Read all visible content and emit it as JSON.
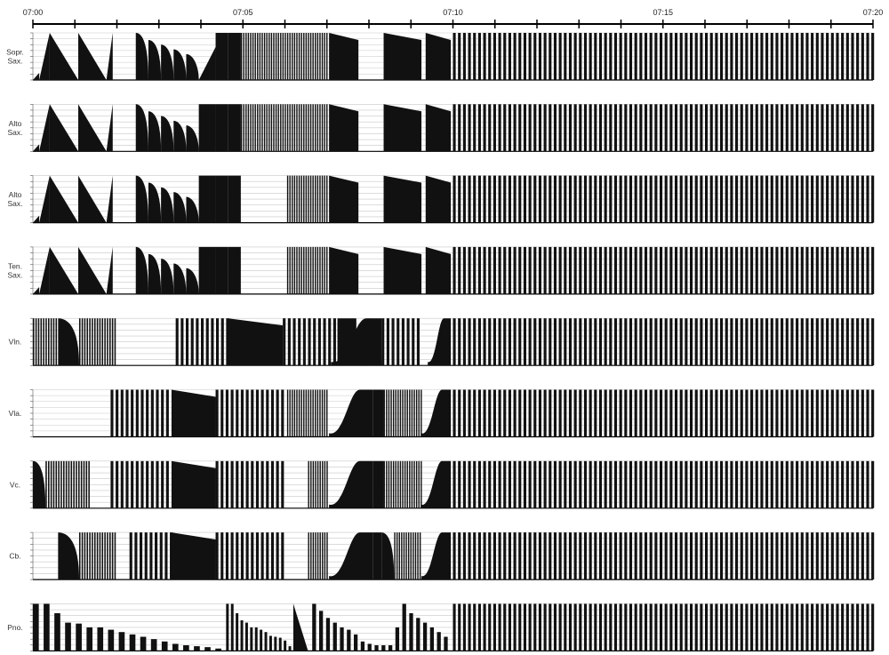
{
  "chart_data": {
    "type": "area",
    "title": "",
    "xlabel": "",
    "ylabel": "",
    "x_unit": "minutes",
    "xlim": [
      0,
      20
    ],
    "ylim": [
      0,
      1
    ],
    "grid": true,
    "time_ticks": [
      "07:00",
      "07:05",
      "07:10",
      "07:15",
      "07:20"
    ],
    "color": "#111111",
    "instruments": [
      {
        "name": "Sopr.\nSax.",
        "events": [
          {
            "shape": "ramp",
            "x0": 0.0,
            "x1": 0.15,
            "amp": 0.15
          },
          {
            "shape": "ramp",
            "x0": 0.15,
            "x1": 0.4,
            "amp": 1.0,
            "dir": "up"
          },
          {
            "shape": "ramp",
            "x0": 0.4,
            "x1": 1.08,
            "amp": 1.0,
            "dir": "down"
          },
          {
            "shape": "ramp",
            "x0": 1.08,
            "x1": 1.75,
            "amp": 1.0,
            "dir": "down"
          },
          {
            "shape": "ramp",
            "x0": 1.75,
            "x1": 1.9,
            "amp": 1.0,
            "dir": "up"
          },
          {
            "shape": "decay",
            "x0": 2.45,
            "x1": 2.75,
            "amp": 1.0
          },
          {
            "shape": "decay",
            "x0": 2.75,
            "x1": 3.05,
            "amp": 0.85
          },
          {
            "shape": "decay",
            "x0": 3.05,
            "x1": 3.35,
            "amp": 0.75
          },
          {
            "shape": "decay",
            "x0": 3.35,
            "x1": 3.65,
            "amp": 0.65
          },
          {
            "shape": "decay",
            "x0": 3.65,
            "x1": 3.95,
            "amp": 0.55
          },
          {
            "shape": "ramp",
            "x0": 3.95,
            "x1": 4.35,
            "amp": 0.7,
            "dir": "up"
          },
          {
            "shape": "block",
            "x0": 4.35,
            "x1": 4.65,
            "amp": 1.0
          },
          {
            "shape": "block",
            "x0": 4.65,
            "x1": 4.95,
            "amp": 1.0
          },
          {
            "shape": "comb",
            "x0": 4.95,
            "x1": 7.05,
            "amp": 1.0,
            "density": 0.055
          },
          {
            "shape": "block",
            "x0": 7.05,
            "x1": 7.75,
            "amp": 1.0,
            "dir": "down"
          },
          {
            "shape": "block",
            "x0": 8.35,
            "x1": 9.25,
            "amp": 1.0,
            "dir": "down"
          },
          {
            "shape": "block",
            "x0": 9.35,
            "x1": 9.95,
            "amp": 1.0,
            "dir": "down"
          },
          {
            "shape": "comb",
            "x0": 10.0,
            "x1": 20.0,
            "amp": 1.0,
            "density": 0.12
          }
        ]
      },
      {
        "name": "Alto\nSax.",
        "events": [
          {
            "shape": "ramp",
            "x0": 0.0,
            "x1": 0.15,
            "amp": 0.15
          },
          {
            "shape": "ramp",
            "x0": 0.15,
            "x1": 0.4,
            "amp": 1.0,
            "dir": "up"
          },
          {
            "shape": "ramp",
            "x0": 0.4,
            "x1": 1.08,
            "amp": 1.0,
            "dir": "down"
          },
          {
            "shape": "ramp",
            "x0": 1.08,
            "x1": 1.75,
            "amp": 1.0,
            "dir": "down"
          },
          {
            "shape": "ramp",
            "x0": 1.75,
            "x1": 1.9,
            "amp": 1.0,
            "dir": "up"
          },
          {
            "shape": "decay",
            "x0": 2.45,
            "x1": 2.75,
            "amp": 1.0
          },
          {
            "shape": "decay",
            "x0": 2.75,
            "x1": 3.05,
            "amp": 0.85
          },
          {
            "shape": "decay",
            "x0": 3.05,
            "x1": 3.35,
            "amp": 0.75
          },
          {
            "shape": "decay",
            "x0": 3.35,
            "x1": 3.65,
            "amp": 0.65
          },
          {
            "shape": "decay",
            "x0": 3.65,
            "x1": 3.95,
            "amp": 0.55
          },
          {
            "shape": "block",
            "x0": 3.95,
            "x1": 4.35,
            "amp": 1.0
          },
          {
            "shape": "block",
            "x0": 4.35,
            "x1": 4.65,
            "amp": 1.0
          },
          {
            "shape": "block",
            "x0": 4.65,
            "x1": 4.95,
            "amp": 1.0
          },
          {
            "shape": "comb",
            "x0": 4.95,
            "x1": 7.05,
            "amp": 1.0,
            "density": 0.055
          },
          {
            "shape": "block",
            "x0": 7.05,
            "x1": 7.75,
            "amp": 1.0,
            "dir": "down"
          },
          {
            "shape": "block",
            "x0": 8.35,
            "x1": 9.25,
            "amp": 1.0,
            "dir": "down"
          },
          {
            "shape": "block",
            "x0": 9.35,
            "x1": 9.95,
            "amp": 1.0,
            "dir": "down"
          },
          {
            "shape": "comb",
            "x0": 10.0,
            "x1": 20.0,
            "amp": 1.0,
            "density": 0.12
          }
        ]
      },
      {
        "name": "Alto\nSax.",
        "events": [
          {
            "shape": "ramp",
            "x0": 0.0,
            "x1": 0.15,
            "amp": 0.15
          },
          {
            "shape": "ramp",
            "x0": 0.15,
            "x1": 0.4,
            "amp": 1.0,
            "dir": "up"
          },
          {
            "shape": "ramp",
            "x0": 0.4,
            "x1": 1.08,
            "amp": 1.0,
            "dir": "down"
          },
          {
            "shape": "ramp",
            "x0": 1.08,
            "x1": 1.75,
            "amp": 1.0,
            "dir": "down"
          },
          {
            "shape": "ramp",
            "x0": 1.75,
            "x1": 1.9,
            "amp": 1.0,
            "dir": "up"
          },
          {
            "shape": "decay",
            "x0": 2.45,
            "x1": 2.75,
            "amp": 1.0
          },
          {
            "shape": "decay",
            "x0": 2.75,
            "x1": 3.05,
            "amp": 0.85
          },
          {
            "shape": "decay",
            "x0": 3.05,
            "x1": 3.35,
            "amp": 0.75
          },
          {
            "shape": "decay",
            "x0": 3.35,
            "x1": 3.65,
            "amp": 0.65
          },
          {
            "shape": "decay",
            "x0": 3.65,
            "x1": 3.95,
            "amp": 0.55
          },
          {
            "shape": "block",
            "x0": 3.95,
            "x1": 4.35,
            "amp": 1.0
          },
          {
            "shape": "block",
            "x0": 4.35,
            "x1": 4.65,
            "amp": 1.0
          },
          {
            "shape": "block",
            "x0": 4.65,
            "x1": 4.95,
            "amp": 1.0
          },
          {
            "shape": "comb",
            "x0": 6.05,
            "x1": 7.05,
            "amp": 1.0,
            "density": 0.055
          },
          {
            "shape": "block",
            "x0": 7.05,
            "x1": 7.75,
            "amp": 1.0,
            "dir": "down"
          },
          {
            "shape": "block",
            "x0": 8.35,
            "x1": 9.25,
            "amp": 1.0,
            "dir": "down"
          },
          {
            "shape": "block",
            "x0": 9.35,
            "x1": 9.95,
            "amp": 1.0,
            "dir": "down"
          },
          {
            "shape": "comb",
            "x0": 10.0,
            "x1": 20.0,
            "amp": 1.0,
            "density": 0.12
          }
        ]
      },
      {
        "name": "Ten.\nSax.",
        "events": [
          {
            "shape": "ramp",
            "x0": 0.0,
            "x1": 0.15,
            "amp": 0.15
          },
          {
            "shape": "ramp",
            "x0": 0.15,
            "x1": 0.4,
            "amp": 1.0,
            "dir": "up"
          },
          {
            "shape": "ramp",
            "x0": 0.4,
            "x1": 1.08,
            "amp": 1.0,
            "dir": "down"
          },
          {
            "shape": "ramp",
            "x0": 1.08,
            "x1": 1.75,
            "amp": 1.0,
            "dir": "down"
          },
          {
            "shape": "ramp",
            "x0": 1.75,
            "x1": 1.9,
            "amp": 1.0,
            "dir": "up"
          },
          {
            "shape": "decay",
            "x0": 2.45,
            "x1": 2.75,
            "amp": 1.0
          },
          {
            "shape": "decay",
            "x0": 2.75,
            "x1": 3.05,
            "amp": 0.85
          },
          {
            "shape": "decay",
            "x0": 3.05,
            "x1": 3.35,
            "amp": 0.75
          },
          {
            "shape": "decay",
            "x0": 3.35,
            "x1": 3.65,
            "amp": 0.65
          },
          {
            "shape": "decay",
            "x0": 3.65,
            "x1": 3.95,
            "amp": 0.55
          },
          {
            "shape": "block",
            "x0": 3.95,
            "x1": 4.35,
            "amp": 1.0
          },
          {
            "shape": "block",
            "x0": 4.35,
            "x1": 4.65,
            "amp": 1.0
          },
          {
            "shape": "block",
            "x0": 4.65,
            "x1": 4.95,
            "amp": 1.0
          },
          {
            "shape": "comb",
            "x0": 6.05,
            "x1": 7.05,
            "amp": 1.0,
            "density": 0.055
          },
          {
            "shape": "block",
            "x0": 7.05,
            "x1": 7.75,
            "amp": 1.0,
            "dir": "down"
          },
          {
            "shape": "block",
            "x0": 8.35,
            "x1": 9.25,
            "amp": 1.0,
            "dir": "down"
          },
          {
            "shape": "block",
            "x0": 9.35,
            "x1": 9.95,
            "amp": 1.0,
            "dir": "down"
          },
          {
            "shape": "comb",
            "x0": 10.0,
            "x1": 20.0,
            "amp": 1.0,
            "density": 0.12
          }
        ]
      },
      {
        "name": "Vln.",
        "events": [
          {
            "shape": "comb",
            "x0": 0.0,
            "x1": 0.6,
            "amp": 1.0,
            "density": 0.06
          },
          {
            "shape": "decay",
            "x0": 0.6,
            "x1": 1.1,
            "amp": 1.0
          },
          {
            "shape": "comb",
            "x0": 1.1,
            "x1": 2.0,
            "amp": 1.0,
            "density": 0.06
          },
          {
            "shape": "comb",
            "x0": 3.4,
            "x1": 4.65,
            "amp": 1.0,
            "density": 0.12
          },
          {
            "shape": "block",
            "x0": 4.65,
            "x1": 5.95,
            "amp": 1.0,
            "dir": "down"
          },
          {
            "shape": "comb",
            "x0": 5.95,
            "x1": 7.25,
            "amp": 1.0,
            "density": 0.12
          },
          {
            "shape": "block",
            "x0": 7.25,
            "x1": 7.7,
            "amp": 1.0
          },
          {
            "shape": "sig",
            "x0": 7.1,
            "x1": 8.3,
            "amp": 1.0
          },
          {
            "shape": "decay",
            "x0": 8.0,
            "x1": 8.3,
            "amp": 1.0
          },
          {
            "shape": "comb",
            "x0": 8.3,
            "x1": 9.25,
            "amp": 1.0,
            "density": 0.12
          },
          {
            "shape": "sig",
            "x0": 9.4,
            "x1": 9.95,
            "amp": 1.0
          },
          {
            "shape": "comb",
            "x0": 10.0,
            "x1": 20.0,
            "amp": 1.0,
            "density": 0.12
          }
        ]
      },
      {
        "name": "Vla.",
        "events": [
          {
            "shape": "comb",
            "x0": 1.85,
            "x1": 3.3,
            "amp": 1.0,
            "density": 0.12
          },
          {
            "shape": "block",
            "x0": 3.3,
            "x1": 4.35,
            "amp": 1.0,
            "dir": "down"
          },
          {
            "shape": "comb",
            "x0": 4.35,
            "x1": 5.95,
            "amp": 1.0,
            "density": 0.12
          },
          {
            "shape": "comb",
            "x0": 6.05,
            "x1": 7.05,
            "amp": 1.0,
            "density": 0.055
          },
          {
            "shape": "sig",
            "x0": 7.05,
            "x1": 8.1,
            "amp": 1.0
          },
          {
            "shape": "block",
            "x0": 8.1,
            "x1": 8.35,
            "amp": 1.0
          },
          {
            "shape": "comb",
            "x0": 8.35,
            "x1": 9.25,
            "amp": 1.0,
            "density": 0.055
          },
          {
            "shape": "sig",
            "x0": 9.25,
            "x1": 9.95,
            "amp": 1.0
          },
          {
            "shape": "comb",
            "x0": 10.0,
            "x1": 20.0,
            "amp": 1.0,
            "density": 0.12
          }
        ]
      },
      {
        "name": "Vc.",
        "events": [
          {
            "shape": "decay",
            "x0": 0.0,
            "x1": 0.3,
            "amp": 1.0
          },
          {
            "shape": "comb",
            "x0": 0.3,
            "x1": 1.35,
            "amp": 1.0,
            "density": 0.06
          },
          {
            "shape": "comb",
            "x0": 1.85,
            "x1": 3.3,
            "amp": 1.0,
            "density": 0.12
          },
          {
            "shape": "block",
            "x0": 3.3,
            "x1": 4.35,
            "amp": 1.0,
            "dir": "down"
          },
          {
            "shape": "comb",
            "x0": 4.35,
            "x1": 5.95,
            "amp": 1.0,
            "density": 0.12
          },
          {
            "shape": "comb",
            "x0": 6.55,
            "x1": 7.05,
            "amp": 1.0,
            "density": 0.055
          },
          {
            "shape": "sig",
            "x0": 7.05,
            "x1": 8.1,
            "amp": 1.0
          },
          {
            "shape": "block",
            "x0": 8.1,
            "x1": 8.35,
            "amp": 1.0
          },
          {
            "shape": "comb",
            "x0": 8.35,
            "x1": 9.25,
            "amp": 1.0,
            "density": 0.055
          },
          {
            "shape": "sig",
            "x0": 9.25,
            "x1": 9.95,
            "amp": 1.0
          },
          {
            "shape": "comb",
            "x0": 10.0,
            "x1": 20.0,
            "amp": 1.0,
            "density": 0.12
          }
        ]
      },
      {
        "name": "Cb.",
        "events": [
          {
            "shape": "decay",
            "x0": 0.6,
            "x1": 1.1,
            "amp": 1.0
          },
          {
            "shape": "comb",
            "x0": 1.1,
            "x1": 2.0,
            "amp": 1.0,
            "density": 0.06
          },
          {
            "shape": "comb",
            "x0": 2.3,
            "x1": 3.3,
            "amp": 1.0,
            "density": 0.12
          },
          {
            "shape": "block",
            "x0": 3.3,
            "x1": 4.35,
            "amp": 1.0,
            "dir": "down"
          },
          {
            "shape": "comb",
            "x0": 4.35,
            "x1": 5.95,
            "amp": 1.0,
            "density": 0.12
          },
          {
            "shape": "comb",
            "x0": 6.55,
            "x1": 7.05,
            "amp": 1.0,
            "density": 0.055
          },
          {
            "shape": "sig",
            "x0": 7.05,
            "x1": 8.1,
            "amp": 1.0
          },
          {
            "shape": "block",
            "x0": 8.1,
            "x1": 8.3,
            "amp": 1.0
          },
          {
            "shape": "decay",
            "x0": 8.3,
            "x1": 8.6,
            "amp": 1.0
          },
          {
            "shape": "comb",
            "x0": 8.6,
            "x1": 9.25,
            "amp": 1.0,
            "density": 0.055
          },
          {
            "shape": "sig",
            "x0": 9.25,
            "x1": 9.95,
            "amp": 1.0
          },
          {
            "shape": "comb",
            "x0": 10.0,
            "x1": 20.0,
            "amp": 1.0,
            "density": 0.12
          }
        ]
      },
      {
        "name": "Pno.",
        "events": [
          {
            "shape": "bars",
            "x0": 0.0,
            "x1": 4.6,
            "amp": 1.0,
            "values": [
              1.0,
              1.0,
              0.8,
              0.6,
              0.58,
              0.5,
              0.5,
              0.45,
              0.4,
              0.35,
              0.3,
              0.25,
              0.2,
              0.15,
              0.12,
              0.1,
              0.08,
              0.05
            ]
          },
          {
            "shape": "bars",
            "x0": 4.6,
            "x1": 6.2,
            "amp": 1.0,
            "values": [
              1.0,
              1.0,
              0.8,
              0.65,
              0.6,
              0.5,
              0.5,
              0.45,
              0.4,
              0.32,
              0.3,
              0.28,
              0.22,
              0.1
            ]
          },
          {
            "shape": "ramp",
            "x0": 6.2,
            "x1": 6.55,
            "amp": 1.0,
            "dir": "down"
          },
          {
            "shape": "bars",
            "x0": 6.65,
            "x1": 9.95,
            "amp": 1.0,
            "values": [
              1.0,
              0.85,
              0.7,
              0.6,
              0.5,
              0.45,
              0.35,
              0.2,
              0.15,
              0.12,
              0.12,
              0.12,
              0.5,
              1.0,
              0.8,
              0.7,
              0.6,
              0.5,
              0.4,
              0.3
            ]
          },
          {
            "shape": "comb",
            "x0": 10.0,
            "x1": 20.0,
            "amp": 1.0,
            "density": 0.12
          }
        ]
      }
    ]
  }
}
